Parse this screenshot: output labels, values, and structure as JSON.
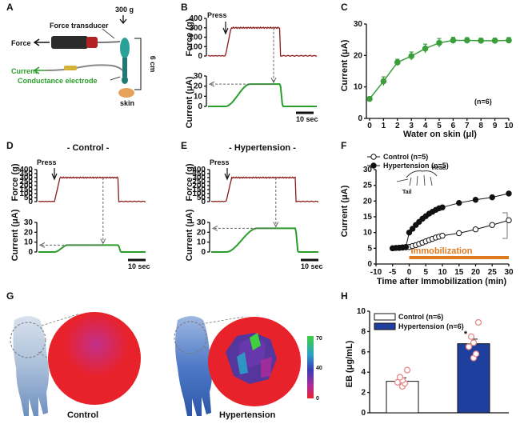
{
  "panels": {
    "A": {
      "letter": "A",
      "weight_label": "300 g",
      "force_transducer_label": "Force transducer",
      "force_label": "Force",
      "current_label": "Current",
      "electrode_label": "Conductance electrode",
      "distance_label": "6 cm",
      "skin_label": "skin"
    },
    "B": {
      "letter": "B",
      "press_label": "Press",
      "scale_bar_label": "10 sec",
      "force_ylabel": "Force (g)",
      "current_ylabel": "Current (μA)"
    },
    "C": {
      "letter": "C"
    },
    "D": {
      "letter": "D",
      "title": "- Control -",
      "press_label": "Press",
      "scale_bar_label": "10 sec",
      "force_ylabel": "Force (g)",
      "current_ylabel": "Current (μA)"
    },
    "E": {
      "letter": "E",
      "title": "- Hypertension -",
      "press_label": "Press",
      "scale_bar_label": "10 sec",
      "force_ylabel": "Force (g)",
      "current_ylabel": "Current (μA)"
    },
    "F": {
      "letter": "F",
      "inset_labels": {
        "head": "Head",
        "tail": "Tail"
      }
    },
    "G": {
      "letter": "G",
      "control_label": "Control",
      "hypertension_label": "Hypertension",
      "colorbar_ticks": [
        "70",
        "40",
        "0"
      ]
    },
    "H": {
      "letter": "H"
    }
  },
  "colors": {
    "force_trace": "#8b1a1a",
    "current_trace": "#2a9d2a",
    "panel_c": "#3a9e3a",
    "immobilization": "#e07a1f",
    "hypertension_bar": "#1f3f9f",
    "dots_h": "#e88888",
    "heatmap_base": "#e8222b"
  },
  "chart_data": [
    {
      "panel": "B",
      "type": "line",
      "force_yticks": [
        0,
        100,
        200,
        300,
        400
      ],
      "current_yticks": [
        0,
        10,
        20,
        30
      ],
      "force_plateau": 300,
      "current_plateau": 22
    },
    {
      "panel": "C",
      "type": "line",
      "xlabel": "Water on skin (μl)",
      "ylabel": "Current (μA)",
      "annotation": "(n=6)",
      "xlim": [
        0,
        10
      ],
      "ylim": [
        0,
        30
      ],
      "xticks": [
        0,
        1,
        2,
        3,
        4,
        5,
        6,
        7,
        8,
        9,
        10
      ],
      "yticks": [
        0,
        10,
        20,
        30
      ],
      "x": [
        0,
        1,
        2,
        3,
        4,
        5,
        6,
        7,
        8,
        9,
        10
      ],
      "y": [
        6.2,
        11.8,
        17.8,
        19.8,
        22.2,
        24.0,
        24.8,
        24.8,
        24.7,
        24.7,
        24.8
      ],
      "err": [
        0.6,
        1.4,
        1.0,
        1.3,
        1.4,
        1.4,
        1.0,
        0.9,
        0.8,
        0.8,
        0.9
      ]
    },
    {
      "panel": "D",
      "type": "line",
      "force_yticks": [
        0,
        50,
        100,
        150,
        200,
        250,
        300,
        350,
        400
      ],
      "current_yticks": [
        0,
        10,
        20,
        30
      ],
      "force_plateau": 300,
      "current_plateau": 7
    },
    {
      "panel": "E",
      "type": "line",
      "force_yticks": [
        0,
        50,
        100,
        150,
        200,
        250,
        300,
        350,
        400
      ],
      "current_yticks": [
        0,
        10,
        20,
        30
      ],
      "force_plateau": 300,
      "current_plateau": 24
    },
    {
      "panel": "F",
      "type": "line",
      "xlabel": "Time after Immobilization (min)",
      "ylabel": "Current (μA)",
      "xlim": [
        -10,
        30
      ],
      "ylim": [
        0,
        30
      ],
      "xticks": [
        -10,
        -5,
        0,
        5,
        10,
        15,
        20,
        25,
        30
      ],
      "yticks": [
        0,
        5,
        10,
        15,
        20,
        25,
        30
      ],
      "immobilization_label": "Immobilization",
      "series": [
        {
          "name": "Control (n=5)",
          "x": [
            -5,
            -4,
            -3,
            -2,
            -1,
            0,
            1,
            2,
            3,
            4,
            5,
            6,
            7,
            8,
            9,
            10,
            15,
            20,
            25,
            30
          ],
          "y": [
            5.0,
            5.1,
            5.1,
            5.2,
            5.3,
            5.4,
            5.7,
            6.0,
            6.4,
            6.8,
            7.2,
            7.6,
            8.0,
            8.4,
            8.7,
            9.0,
            9.8,
            11.0,
            12.4,
            13.9
          ],
          "filled": false
        },
        {
          "name": "Hypertension (n=5)",
          "x": [
            -5,
            -4,
            -3,
            -2,
            -1,
            0,
            1,
            2,
            3,
            4,
            5,
            6,
            7,
            8,
            9,
            10,
            15,
            20,
            25,
            30
          ],
          "y": [
            5.0,
            5.1,
            5.2,
            5.3,
            5.4,
            10.0,
            11.2,
            12.4,
            13.4,
            14.4,
            15.2,
            16.0,
            16.6,
            17.2,
            17.7,
            18.0,
            19.4,
            20.4,
            21.2,
            22.4
          ],
          "filled": true
        }
      ]
    },
    {
      "panel": "H",
      "type": "bar",
      "ylabel": "EB (μg/mL)",
      "ylim": [
        0,
        10
      ],
      "yticks": [
        0,
        2,
        4,
        6,
        8,
        10
      ],
      "categories": [
        "Control (n=6)",
        "Hypertension (n=6)"
      ],
      "values": [
        3.1,
        6.8
      ],
      "err": [
        0.35,
        0.45
      ],
      "points": [
        [
          2.6,
          2.9,
          3.0,
          3.2,
          3.5,
          4.2
        ],
        [
          5.4,
          5.8,
          6.5,
          6.9,
          7.5,
          8.9
        ]
      ],
      "annotation": "*"
    }
  ]
}
